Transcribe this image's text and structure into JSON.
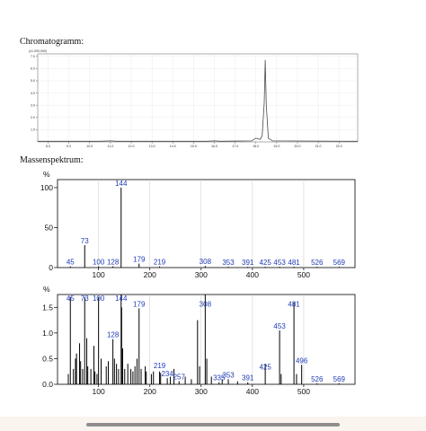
{
  "page": {
    "chromatogram_heading": "Chromatogramm:",
    "spectrum_heading": "Massenspektrum:"
  },
  "chart_data": [
    {
      "type": "line",
      "title": "Chromatogramm:",
      "scale_label": "(x1,000,000)",
      "yticks": [
        "7.0",
        "6.0",
        "5.0",
        "4.0",
        "3.0",
        "2.0",
        "1.0"
      ],
      "ytick_values": [
        7,
        6,
        5,
        4,
        3,
        2,
        1
      ],
      "xticks": [
        "8.0",
        "9.0",
        "10.0",
        "11.0",
        "12.0",
        "13.0",
        "14.0",
        "15.0",
        "16.0",
        "17.0",
        "18.0",
        "19.0",
        "20.0",
        "21.0",
        "22.0"
      ],
      "xtick_values": [
        8,
        9,
        10,
        11,
        12,
        13,
        14,
        15,
        16,
        17,
        18,
        19,
        20,
        21,
        22
      ],
      "xlim": [
        7.5,
        22.9
      ],
      "ylim": [
        0,
        7.2
      ],
      "grid": true,
      "trace": [
        [
          7.5,
          0.05
        ],
        [
          10.5,
          0.05
        ],
        [
          11.0,
          0.08
        ],
        [
          11.3,
          0.05
        ],
        [
          15.6,
          0.05
        ],
        [
          16.0,
          0.08
        ],
        [
          16.3,
          0.05
        ],
        [
          17.8,
          0.08
        ],
        [
          18.0,
          0.3
        ],
        [
          18.2,
          0.2
        ],
        [
          18.3,
          0.5
        ],
        [
          18.4,
          3.2
        ],
        [
          18.45,
          6.7
        ],
        [
          18.5,
          3.0
        ],
        [
          18.6,
          0.3
        ],
        [
          18.8,
          0.08
        ],
        [
          22.9,
          0.05
        ]
      ],
      "color": "#4a4a4a"
    },
    {
      "type": "bar",
      "title": "Massenspektrum:",
      "yunit": "%",
      "yticks": [
        "100",
        "50",
        "0"
      ],
      "ytick_values": [
        100,
        50,
        0
      ],
      "xticks": [
        "100",
        "200",
        "300",
        "400",
        "500"
      ],
      "xtick_values": [
        100,
        200,
        300,
        400,
        500
      ],
      "xlim": [
        20,
        600
      ],
      "ylim": [
        0,
        110
      ],
      "grid": true,
      "bars": [
        [
          45,
          1.5
        ],
        [
          73,
          28
        ],
        [
          100,
          1.5
        ],
        [
          128,
          1.5
        ],
        [
          144,
          100
        ],
        [
          179,
          5
        ],
        [
          219,
          1.5
        ],
        [
          308,
          2
        ],
        [
          353,
          1
        ],
        [
          391,
          1
        ],
        [
          425,
          1
        ],
        [
          453,
          1
        ],
        [
          481,
          1
        ],
        [
          526,
          1
        ],
        [
          569,
          1
        ]
      ],
      "labels": [
        [
          45,
          1.5,
          "45"
        ],
        [
          73,
          28,
          "73"
        ],
        [
          100,
          1.5,
          "100"
        ],
        [
          128,
          1.5,
          "128"
        ],
        [
          144,
          100,
          "144"
        ],
        [
          179,
          5,
          "179"
        ],
        [
          219,
          1.5,
          "219"
        ],
        [
          308,
          2,
          "308"
        ],
        [
          353,
          1,
          "353"
        ],
        [
          391,
          1,
          "391"
        ],
        [
          425,
          1,
          "425"
        ],
        [
          453,
          1,
          "453"
        ],
        [
          481,
          1,
          "481"
        ],
        [
          526,
          1,
          "526"
        ],
        [
          569,
          1,
          "569"
        ]
      ]
    },
    {
      "type": "bar",
      "yunit": "%",
      "yticks": [
        "1.5",
        "1.0",
        "0.5",
        "0.0"
      ],
      "ytick_values": [
        1.5,
        1.0,
        0.5,
        0.0
      ],
      "xticks": [
        "100",
        "200",
        "300",
        "400",
        "500"
      ],
      "xtick_values": [
        100,
        200,
        300,
        400,
        500
      ],
      "xlim": [
        20,
        600
      ],
      "ylim": [
        0,
        1.75
      ],
      "grid": true,
      "bars": [
        [
          41,
          0.2
        ],
        [
          45,
          1.7
        ],
        [
          51,
          0.3
        ],
        [
          55,
          0.5
        ],
        [
          57,
          0.6
        ],
        [
          63,
          0.8
        ],
        [
          65,
          0.45
        ],
        [
          69,
          0.3
        ],
        [
          73,
          1.7
        ],
        [
          77,
          0.9
        ],
        [
          79,
          0.35
        ],
        [
          85,
          0.3
        ],
        [
          91,
          0.75
        ],
        [
          93,
          0.25
        ],
        [
          97,
          0.2
        ],
        [
          100,
          1.7
        ],
        [
          105,
          0.5
        ],
        [
          115,
          0.35
        ],
        [
          119,
          0.45
        ],
        [
          128,
          0.88
        ],
        [
          131,
          0.5
        ],
        [
          135,
          0.4
        ],
        [
          139,
          0.3
        ],
        [
          144,
          1.75
        ],
        [
          145,
          1.5
        ],
        [
          147,
          0.7
        ],
        [
          151,
          0.3
        ],
        [
          157,
          0.4
        ],
        [
          163,
          0.3
        ],
        [
          167,
          0.25
        ],
        [
          171,
          0.35
        ],
        [
          175,
          0.5
        ],
        [
          179,
          1.48
        ],
        [
          183,
          0.3
        ],
        [
          191,
          0.35
        ],
        [
          193,
          0.25
        ],
        [
          203,
          0.2
        ],
        [
          207,
          0.25
        ],
        [
          219,
          0.25
        ],
        [
          221,
          0.22
        ],
        [
          234,
          0.12
        ],
        [
          240,
          0.15
        ],
        [
          247,
          0.3
        ],
        [
          257,
          0.06
        ],
        [
          269,
          0.15
        ],
        [
          281,
          0.1
        ],
        [
          293,
          1.25
        ],
        [
          297,
          0.35
        ],
        [
          308,
          1.75
        ],
        [
          311,
          0.5
        ],
        [
          320,
          0.15
        ],
        [
          335,
          0.04
        ],
        [
          341,
          0.1
        ],
        [
          353,
          0.1
        ],
        [
          371,
          0.06
        ],
        [
          391,
          0.04
        ],
        [
          425,
          0.4
        ],
        [
          453,
          1.05
        ],
        [
          456,
          0.2
        ],
        [
          481,
          1.6
        ],
        [
          486,
          0.2
        ],
        [
          496,
          0.38
        ],
        [
          526,
          0.02
        ],
        [
          569,
          0.02
        ]
      ],
      "labels": [
        [
          45,
          1.7,
          "45"
        ],
        [
          73,
          1.7,
          "73"
        ],
        [
          100,
          1.62,
          "100"
        ],
        [
          144,
          1.75,
          "144"
        ],
        [
          179,
          1.48,
          "179"
        ],
        [
          308,
          1.48,
          "308"
        ],
        [
          481,
          1.48,
          "481"
        ],
        [
          453,
          1.05,
          "453"
        ],
        [
          128,
          0.88,
          "128"
        ],
        [
          219,
          0.28,
          "219"
        ],
        [
          234,
          0.12,
          "234"
        ],
        [
          257,
          0.06,
          "257"
        ],
        [
          335,
          0.04,
          "335"
        ],
        [
          353,
          0.1,
          "353"
        ],
        [
          391,
          0.04,
          "391"
        ],
        [
          425,
          0.25,
          "425"
        ],
        [
          496,
          0.38,
          "496"
        ],
        [
          526,
          0.02,
          "526"
        ],
        [
          569,
          0.02,
          "569"
        ]
      ]
    }
  ]
}
